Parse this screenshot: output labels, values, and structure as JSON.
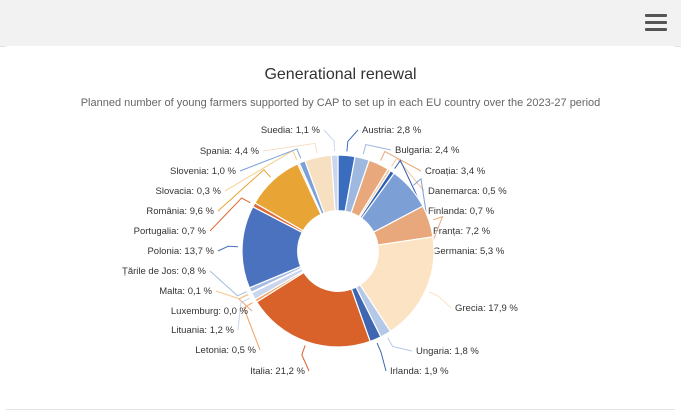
{
  "chart_data": {
    "type": "pie",
    "title": "Generational renewal",
    "subtitle": "Planned number of young farmers supported by CAP to set up in each EU country over the 2023-27 period",
    "categories": [
      "Austria",
      "Bulgaria",
      "Croația",
      "Danemarca",
      "Finlanda",
      "Franța",
      "Germania",
      "Grecia",
      "Ungaria",
      "Irlanda",
      "Italia",
      "Letonia",
      "Lituania",
      "Luxemburg",
      "Malta",
      "Țările de Jos",
      "Polonia",
      "Portugalia",
      "România",
      "Slovacia",
      "Slovenia",
      "Spania",
      "Suedia"
    ],
    "values": [
      2.8,
      2.4,
      3.4,
      0.5,
      0.7,
      7.2,
      5.3,
      17.9,
      1.8,
      1.9,
      21.2,
      0.5,
      1.2,
      0.0,
      0.1,
      0.8,
      13.7,
      0.7,
      9.6,
      0.3,
      1.0,
      4.4,
      1.1
    ],
    "labels": [
      "Austria: 2,8 %",
      "Bulgaria: 2,4 %",
      "Croația: 3,4 %",
      "Danemarca: 0,5 %",
      "Finlanda: 0,7 %",
      "Franța: 7,2 %",
      "Germania: 5,3 %",
      "Grecia: 17,9 %",
      "Ungaria: 1,8 %",
      "Irlanda: 1,9 %",
      "Italia: 21,2 %",
      "Letonia: 0,5 %",
      "Lituania: 1,2 %",
      "Luxemburg: 0,0 %",
      "Malta: 0,1 %",
      "Țările de Jos: 0,8 %",
      "Polonia: 13,7 %",
      "Portugalia: 0,7 %",
      "România: 9,6 %",
      "Slovacia: 0,3 %",
      "Slovenia: 1,0 %",
      "Spania: 4,4 %",
      "Suedia: 1,1 %"
    ],
    "colors": [
      "#3b6dbf",
      "#9fb8e0",
      "#e8a87c",
      "#f2c8a0",
      "#2f5fb3",
      "#7c9fd6",
      "#e8a87c",
      "#fbe3c4",
      "#b5c8e8",
      "#3f66b0",
      "#d9622b",
      "#f0a060",
      "#c9d6ee",
      "#e8a87c",
      "#f7c890",
      "#a8bde0",
      "#4a72bf",
      "#e06a35",
      "#e8a535",
      "#f5d08a",
      "#7aa0d9",
      "#f7dfc1",
      "#c9d6ee"
    ],
    "hole": 0.42,
    "legend": "none"
  }
}
